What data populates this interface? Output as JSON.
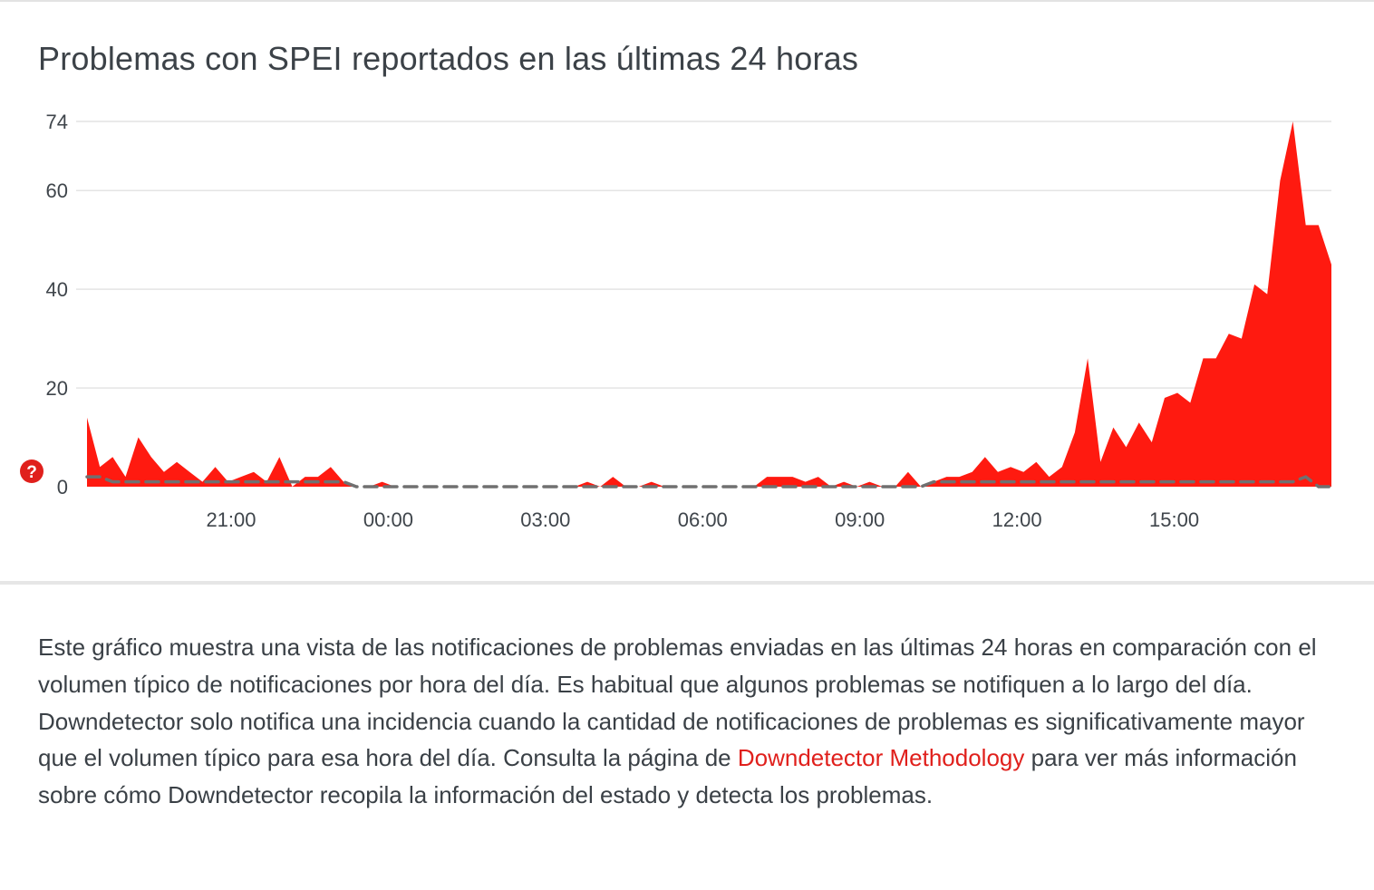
{
  "title": "Problemas con SPEI reportados en las últimas 24 horas",
  "help_icon": {
    "icon": "question-mark-icon",
    "glyph": "?",
    "color": "#e0201c"
  },
  "chart_data": {
    "type": "area",
    "title": "Problemas con SPEI reportados en las últimas 24 horas",
    "xlabel": "",
    "ylabel": "",
    "ylim": [
      0,
      74
    ],
    "yticks": [
      0,
      20,
      40,
      60,
      74
    ],
    "x_unit": "hours since 18:00",
    "xlim": [
      0,
      23.75
    ],
    "xticks": [
      {
        "value": 2.75,
        "label": "21:00"
      },
      {
        "value": 5.75,
        "label": "00:00"
      },
      {
        "value": 8.75,
        "label": "03:00"
      },
      {
        "value": 11.75,
        "label": "06:00"
      },
      {
        "value": 14.75,
        "label": "09:00"
      },
      {
        "value": 17.75,
        "label": "12:00"
      },
      {
        "value": 20.75,
        "label": "15:00"
      }
    ],
    "grid": true,
    "legend": "none",
    "series": [
      {
        "role": "reports",
        "color": "#ff1a10",
        "values": [
          14,
          4,
          6,
          2,
          10,
          6,
          3,
          5,
          3,
          1,
          4,
          1,
          2,
          3,
          1,
          6,
          0,
          2,
          2,
          4,
          1,
          0,
          0,
          1,
          0,
          0,
          0,
          0,
          0,
          0,
          0,
          0,
          0,
          0,
          0,
          0,
          0,
          0,
          0,
          1,
          0,
          2,
          0,
          0,
          1,
          0,
          0,
          0,
          0,
          0,
          0,
          0,
          0,
          2,
          2,
          2,
          1,
          2,
          0,
          1,
          0,
          1,
          0,
          0,
          3,
          0,
          1,
          2,
          2,
          3,
          6,
          3,
          4,
          3,
          5,
          2,
          4,
          11,
          26,
          5,
          12,
          8,
          13,
          9,
          18,
          19,
          17,
          26,
          26,
          31,
          30,
          41,
          39,
          62,
          74,
          53,
          53,
          45
        ]
      },
      {
        "role": "baseline",
        "color": "#707070",
        "style": "dashed",
        "values": [
          2,
          2,
          1,
          1,
          1,
          1,
          1,
          1,
          1,
          1,
          1,
          1,
          1,
          1,
          1,
          1,
          1,
          1,
          1,
          1,
          1,
          0,
          0,
          0,
          0,
          0,
          0,
          0,
          0,
          0,
          0,
          0,
          0,
          0,
          0,
          0,
          0,
          0,
          0,
          0,
          0,
          0,
          0,
          0,
          0,
          0,
          0,
          0,
          0,
          0,
          0,
          0,
          0,
          0,
          0,
          0,
          0,
          0,
          0,
          0,
          0,
          0,
          0,
          0,
          0,
          0,
          1,
          1,
          1,
          1,
          1,
          1,
          1,
          1,
          1,
          1,
          1,
          1,
          1,
          1,
          1,
          1,
          1,
          1,
          1,
          1,
          1,
          1,
          1,
          1,
          1,
          1,
          1,
          1,
          1,
          2,
          0,
          0
        ]
      }
    ]
  },
  "description": {
    "text_before": "Este gráfico muestra una vista de las notificaciones de problemas enviadas en las últimas 24 horas en comparación con el volumen típico de notificaciones por hora del día. Es habitual que algunos problemas se notifiquen a lo largo del día. Downdetector solo notifica una incidencia cuando la cantidad de notificaciones de problemas es significativamente mayor que el volumen típico para esa hora del día. Consulta la página de ",
    "link_text": "Downdetector Methodology",
    "text_after": " para ver más información sobre cómo Downdetector recopila la información del estado y detecta los problemas.",
    "link_color": "#e0201c"
  }
}
